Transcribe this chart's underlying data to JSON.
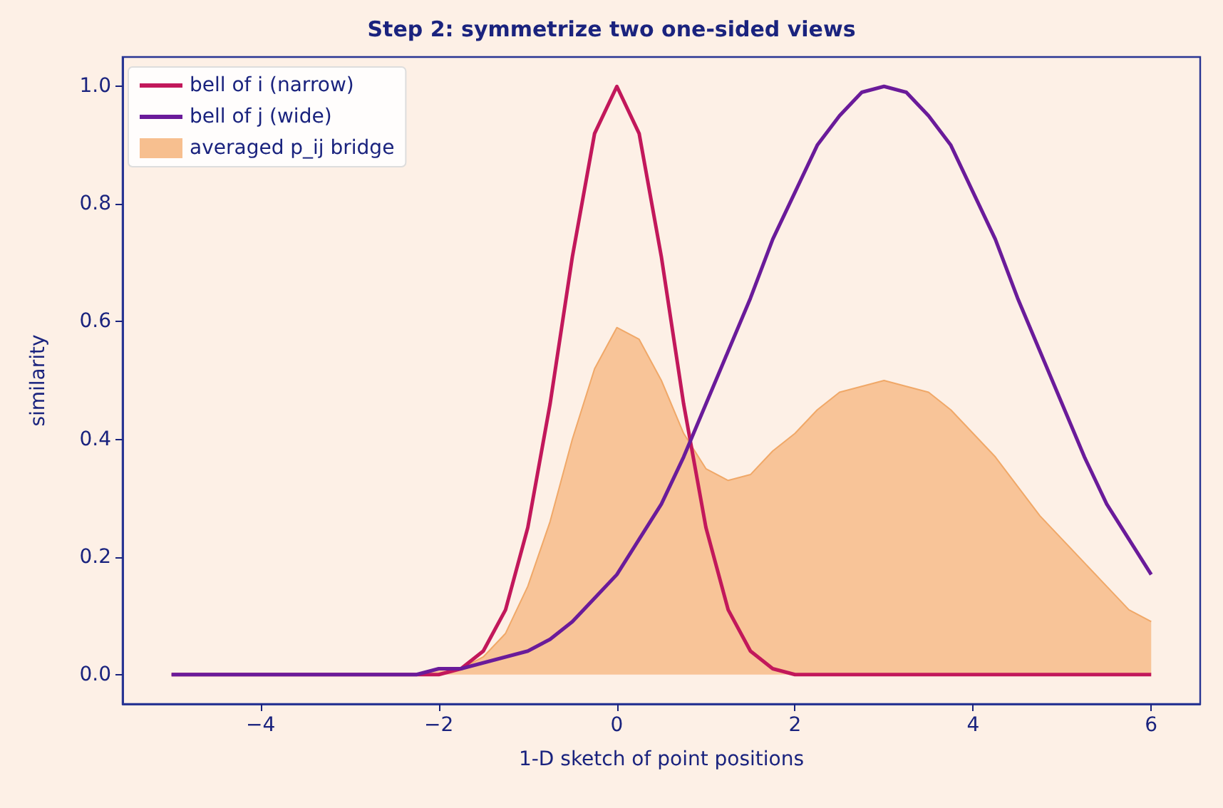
{
  "chart_data": {
    "type": "line",
    "title": "Step 2: symmetrize two one-sided views",
    "xlabel": "1-D sketch of point positions",
    "ylabel": "similarity",
    "x": [
      -5,
      -4,
      -3,
      -2.5,
      -2.25,
      -2,
      -1.75,
      -1.5,
      -1.25,
      -1,
      -0.75,
      -0.5,
      -0.25,
      0,
      0.25,
      0.5,
      0.75,
      1,
      1.25,
      1.5,
      1.75,
      2,
      2.25,
      2.5,
      2.75,
      3,
      3.25,
      3.5,
      3.75,
      4,
      4.25,
      4.5,
      4.75,
      5,
      5.25,
      5.5,
      5.75,
      6
    ],
    "series": [
      {
        "name": "bell of i (narrow)",
        "color": "#c2185b",
        "values": [
          0,
          0,
          0,
          0,
          0,
          0,
          0.01,
          0.04,
          0.11,
          0.25,
          0.46,
          0.71,
          0.92,
          1,
          0.92,
          0.71,
          0.46,
          0.25,
          0.11,
          0.04,
          0.01,
          0,
          0,
          0,
          0,
          0,
          0,
          0,
          0,
          0,
          0,
          0,
          0,
          0,
          0,
          0,
          0,
          0
        ]
      },
      {
        "name": "bell of j (wide)",
        "color": "#6a1b9a",
        "values": [
          0,
          0,
          0,
          0,
          0,
          0.01,
          0.01,
          0.02,
          0.03,
          0.04,
          0.06,
          0.09,
          0.13,
          0.17,
          0.23,
          0.29,
          0.37,
          0.46,
          0.55,
          0.64,
          0.74,
          0.82,
          0.9,
          0.95,
          0.99,
          1,
          0.99,
          0.95,
          0.9,
          0.82,
          0.74,
          0.64,
          0.55,
          0.46,
          0.37,
          0.29,
          0.23,
          0.17
        ]
      },
      {
        "name": "averaged p_ij bridge",
        "type": "area",
        "color": "#f7bf8f",
        "values": [
          0,
          0,
          0,
          0,
          0,
          0.01,
          0.01,
          0.03,
          0.07,
          0.15,
          0.26,
          0.4,
          0.52,
          0.59,
          0.57,
          0.5,
          0.41,
          0.35,
          0.33,
          0.34,
          0.38,
          0.41,
          0.45,
          0.48,
          0.49,
          0.5,
          0.49,
          0.48,
          0.45,
          0.41,
          0.37,
          0.32,
          0.27,
          0.23,
          0.19,
          0.15,
          0.11,
          0.09
        ]
      }
    ],
    "xlim": [
      -5.55,
      6.55
    ],
    "xticks": [
      -4,
      -2,
      0,
      2,
      4,
      6
    ],
    "ylim": [
      -0.05,
      1.05
    ],
    "yticks": [
      {
        "value": 0,
        "label": "0.0"
      },
      {
        "value": 0.2,
        "label": "0.2"
      },
      {
        "value": 0.4,
        "label": "0.4"
      },
      {
        "value": 0.6,
        "label": "0.6"
      },
      {
        "value": 0.8,
        "label": "0.8"
      },
      {
        "value": 1,
        "label": "1.0"
      }
    ],
    "grid": false,
    "legend": "top left",
    "marker": "none",
    "line_style": "solid"
  }
}
